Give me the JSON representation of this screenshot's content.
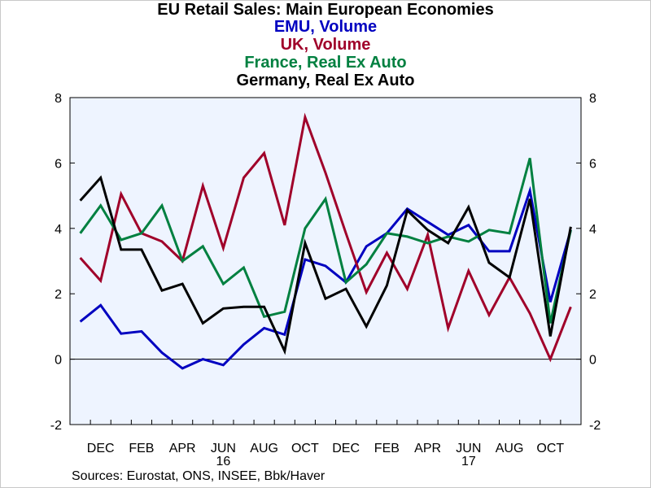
{
  "chart_data": {
    "type": "line",
    "title": "EU Retail Sales: Main European Economies",
    "subtitles": [
      "EMU, Volume",
      "UK, Volume",
      "France, Real Ex Auto",
      "Germany, Real Ex Auto"
    ],
    "x_tick_labels": [
      "DEC",
      "FEB",
      "APR",
      "JUN",
      "AUG",
      "OCT",
      "DEC",
      "FEB",
      "APR",
      "JUN",
      "AUG",
      "OCT"
    ],
    "year_labels": [
      {
        "after_tick": "JUN",
        "tick_index": 3,
        "label": "16"
      },
      {
        "after_tick": "JUN",
        "tick_index": 9,
        "label": "17"
      }
    ],
    "x_start": "2015-11",
    "x_end": "2017-11",
    "ylim": [
      -2,
      8
    ],
    "y_ticks": [
      -2,
      0,
      2,
      4,
      6,
      8
    ],
    "grid": false,
    "zero_line": true,
    "series": [
      {
        "name": "EMU, Volume",
        "color": "#0000c0",
        "values": [
          1.15,
          1.65,
          0.78,
          0.85,
          0.2,
          -0.28,
          0.0,
          -0.18,
          0.45,
          0.95,
          0.75,
          3.05,
          2.85,
          2.35,
          3.45,
          3.85,
          4.6,
          4.2,
          3.8,
          4.1,
          3.3,
          3.3,
          5.15,
          1.75,
          3.95
        ]
      },
      {
        "name": "UK, Volume",
        "color": "#a0002a",
        "values": [
          3.1,
          2.4,
          5.05,
          3.85,
          3.6,
          3.0,
          5.3,
          3.4,
          5.55,
          6.3,
          4.1,
          7.4,
          5.7,
          3.85,
          2.05,
          3.25,
          2.15,
          3.8,
          0.95,
          2.7,
          1.35,
          2.5,
          1.4,
          0.0,
          1.6
        ]
      },
      {
        "name": "France, Real Ex Auto",
        "color": "#008040",
        "values": [
          3.85,
          4.7,
          3.65,
          3.85,
          4.7,
          3.0,
          3.45,
          2.3,
          2.8,
          1.3,
          1.45,
          4.0,
          4.9,
          2.35,
          2.9,
          3.85,
          3.75,
          3.55,
          3.75,
          3.6,
          3.95,
          3.85,
          6.15,
          1.1,
          3.95
        ]
      },
      {
        "name": "Germany, Real Ex Auto",
        "color": "#000000",
        "values": [
          4.85,
          5.55,
          3.35,
          3.35,
          2.1,
          2.3,
          1.1,
          1.55,
          1.6,
          1.6,
          0.25,
          3.55,
          1.85,
          2.15,
          1.0,
          2.25,
          4.55,
          3.95,
          3.55,
          4.65,
          2.95,
          2.5,
          4.9,
          0.7,
          4.05
        ]
      }
    ]
  },
  "source": "Sources:  Eurostat, ONS, INSEE, Bbk/Haver"
}
